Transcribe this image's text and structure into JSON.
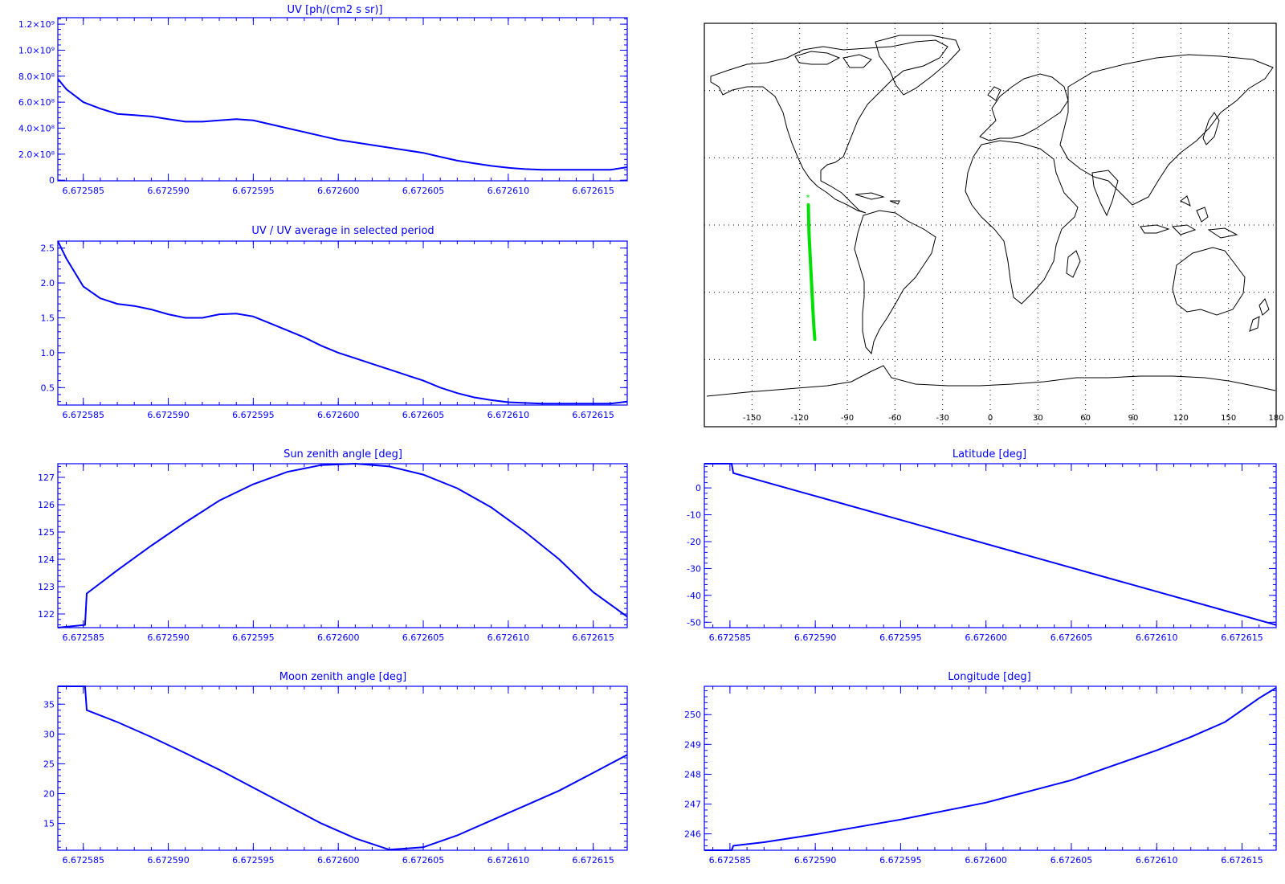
{
  "colors": {
    "axis": "#0000ff",
    "series": "#0000ff",
    "track": "#00e000",
    "coast": "#000000"
  },
  "chart_data": [
    {
      "id": "uv",
      "type": "line",
      "title": "UV [ph/(cm2 s sr)]",
      "xlim": [
        6.6725835,
        6.672617
      ],
      "x_ticks": [
        6.672585,
        6.67259,
        6.672595,
        6.6726,
        6.672605,
        6.67261,
        6.672615
      ],
      "x_tick_labels": [
        "6.672585",
        "6.672590",
        "6.672595",
        "6.672600",
        "6.672605",
        "6.672610",
        "6.672615"
      ],
      "ylim": [
        -5000000,
        1250000000
      ],
      "y_ticks": [
        0,
        200000000,
        400000000,
        600000000,
        800000000,
        1000000000,
        1200000000
      ],
      "y_tick_labels": [
        "0",
        "2.0×10⁸",
        "4.0×10⁸",
        "6.0×10⁸",
        "8.0×10⁸",
        "1.0×10⁹",
        "1.2×10⁹"
      ],
      "series": [
        {
          "x": [
            6.6725835,
            6.672584,
            6.672585,
            6.672586,
            6.672587,
            6.672588,
            6.672589,
            6.67259,
            6.672591,
            6.672592,
            6.672593,
            6.672594,
            6.672595,
            6.672596,
            6.672597,
            6.672598,
            6.672599,
            6.6726,
            6.672601,
            6.672602,
            6.672603,
            6.672604,
            6.672605,
            6.672606,
            6.672607,
            6.672608,
            6.672609,
            6.67261,
            6.672611,
            6.672612,
            6.672613,
            6.672614,
            6.672615,
            6.672616,
            6.672617
          ],
          "values": [
            780000000,
            700000000,
            600000000,
            550000000,
            510000000,
            500000000,
            490000000,
            470000000,
            450000000,
            450000000,
            460000000,
            470000000,
            460000000,
            430000000,
            400000000,
            370000000,
            340000000,
            310000000,
            290000000,
            270000000,
            250000000,
            230000000,
            210000000,
            180000000,
            150000000,
            130000000,
            110000000,
            95000000,
            85000000,
            80000000,
            80000000,
            80000000,
            80000000,
            80000000,
            100000000
          ]
        }
      ]
    },
    {
      "id": "uv-ratio",
      "type": "line",
      "title": "UV / UV average in selected period",
      "xlim": [
        6.6725835,
        6.672617
      ],
      "x_ticks": [
        6.672585,
        6.67259,
        6.672595,
        6.6726,
        6.672605,
        6.67261,
        6.672615
      ],
      "x_tick_labels": [
        "6.672585",
        "6.672590",
        "6.672595",
        "6.672600",
        "6.672605",
        "6.672610",
        "6.672615"
      ],
      "ylim": [
        0.25,
        2.6
      ],
      "y_ticks": [
        0.5,
        1.0,
        1.5,
        2.0,
        2.5
      ],
      "y_tick_labels": [
        "0.5",
        "1.0",
        "1.5",
        "2.0",
        "2.5"
      ],
      "series": [
        {
          "x": [
            6.6725835,
            6.672584,
            6.672585,
            6.672586,
            6.672587,
            6.672588,
            6.672589,
            6.67259,
            6.672591,
            6.672592,
            6.672593,
            6.672594,
            6.672595,
            6.672596,
            6.672597,
            6.672598,
            6.672599,
            6.6726,
            6.672601,
            6.672602,
            6.672603,
            6.672604,
            6.672605,
            6.672606,
            6.672607,
            6.672608,
            6.672609,
            6.67261,
            6.672611,
            6.672612,
            6.672613,
            6.672614,
            6.672615,
            6.672616,
            6.672617
          ],
          "values": [
            2.6,
            2.35,
            1.95,
            1.78,
            1.7,
            1.67,
            1.62,
            1.55,
            1.5,
            1.5,
            1.55,
            1.56,
            1.52,
            1.42,
            1.32,
            1.22,
            1.1,
            1.0,
            0.92,
            0.84,
            0.76,
            0.68,
            0.6,
            0.5,
            0.42,
            0.36,
            0.32,
            0.29,
            0.28,
            0.27,
            0.27,
            0.27,
            0.27,
            0.27,
            0.3
          ]
        }
      ]
    },
    {
      "id": "sun-zenith",
      "type": "line",
      "title": "Sun zenith angle [deg]",
      "xlim": [
        6.6725835,
        6.672617
      ],
      "x_ticks": [
        6.672585,
        6.67259,
        6.672595,
        6.6726,
        6.672605,
        6.67261,
        6.672615
      ],
      "x_tick_labels": [
        "6.672585",
        "6.672590",
        "6.672595",
        "6.672600",
        "6.672605",
        "6.672610",
        "6.672615"
      ],
      "ylim": [
        121.5,
        127.5
      ],
      "y_ticks": [
        122,
        123,
        124,
        125,
        126,
        127
      ],
      "y_tick_labels": [
        "122",
        "123",
        "124",
        "125",
        "126",
        "127"
      ],
      "series": [
        {
          "x": [
            6.6725835,
            6.6725851,
            6.6725852,
            6.672587,
            6.672589,
            6.672591,
            6.672593,
            6.672595,
            6.672597,
            6.672599,
            6.672601,
            6.672603,
            6.672605,
            6.672607,
            6.672609,
            6.672611,
            6.672613,
            6.672615,
            6.672617
          ],
          "values": [
            121.5,
            121.6,
            122.75,
            123.6,
            124.5,
            125.35,
            126.15,
            126.75,
            127.2,
            127.45,
            127.5,
            127.4,
            127.1,
            126.6,
            125.9,
            125.0,
            124.0,
            122.8,
            121.9
          ]
        }
      ]
    },
    {
      "id": "moon-zenith",
      "type": "line",
      "title": "Moon zenith angle [deg]",
      "xlim": [
        6.6725835,
        6.672617
      ],
      "x_ticks": [
        6.672585,
        6.67259,
        6.672595,
        6.6726,
        6.672605,
        6.67261,
        6.672615
      ],
      "x_tick_labels": [
        "6.672585",
        "6.672590",
        "6.672595",
        "6.672600",
        "6.672605",
        "6.672610",
        "6.672615"
      ],
      "ylim": [
        10.5,
        38
      ],
      "y_ticks": [
        15,
        20,
        25,
        30,
        35
      ],
      "y_tick_labels": [
        "15",
        "20",
        "25",
        "30",
        "35"
      ],
      "series": [
        {
          "x": [
            6.6725835,
            6.6725851,
            6.6725852,
            6.672587,
            6.672589,
            6.672591,
            6.672593,
            6.672595,
            6.672597,
            6.672599,
            6.672601,
            6.672603,
            6.672605,
            6.672607,
            6.672609,
            6.672611,
            6.672613,
            6.672615,
            6.672617
          ],
          "values": [
            38,
            38,
            34,
            32,
            29.5,
            26.8,
            24,
            21,
            18,
            15,
            12.5,
            10.6,
            11,
            13,
            15.5,
            18,
            20.5,
            23.5,
            26.5
          ]
        }
      ]
    },
    {
      "id": "latitude",
      "type": "line",
      "title": "Latitude [deg]",
      "xlim": [
        6.6725835,
        6.672617
      ],
      "x_ticks": [
        6.672585,
        6.67259,
        6.672595,
        6.6726,
        6.672605,
        6.67261,
        6.672615
      ],
      "x_tick_labels": [
        "6.672585",
        "6.672590",
        "6.672595",
        "6.672600",
        "6.672605",
        "6.672610",
        "6.672615"
      ],
      "ylim": [
        -52,
        9
      ],
      "y_ticks": [
        -50,
        -40,
        -30,
        -20,
        -10,
        0
      ],
      "y_tick_labels": [
        "-50",
        "-40",
        "-30",
        "-20",
        "-10",
        "0"
      ],
      "series": [
        {
          "x": [
            6.6725835,
            6.6725851,
            6.6725852,
            6.672617
          ],
          "values": [
            9,
            9,
            5.5,
            -51
          ]
        }
      ]
    },
    {
      "id": "longitude",
      "type": "line",
      "title": "Longitude [deg]",
      "xlim": [
        6.6725835,
        6.672617
      ],
      "x_ticks": [
        6.672585,
        6.67259,
        6.672595,
        6.6726,
        6.672605,
        6.67261,
        6.672615
      ],
      "x_tick_labels": [
        "6.672585",
        "6.672590",
        "6.672595",
        "6.672600",
        "6.672605",
        "6.672610",
        "6.672615"
      ],
      "ylim": [
        245.45,
        250.95
      ],
      "y_ticks": [
        246,
        247,
        248,
        249,
        250
      ],
      "y_tick_labels": [
        "246",
        "247",
        "248",
        "249",
        "250"
      ],
      "series": [
        {
          "x": [
            6.6725835,
            6.6725851,
            6.6725852,
            6.672587,
            6.67259,
            6.672595,
            6.6726,
            6.672605,
            6.67261,
            6.672612,
            6.672614,
            6.672616,
            6.672617
          ],
          "values": [
            245.45,
            245.45,
            245.6,
            245.72,
            245.98,
            246.48,
            247.05,
            247.8,
            248.8,
            249.25,
            249.75,
            250.55,
            250.9
          ]
        }
      ]
    }
  ],
  "map": {
    "x_tick_labels": [
      "-150",
      "-120",
      "-90",
      "-60",
      "-30",
      "0",
      "30",
      "60",
      "90",
      "120",
      "150",
      "180"
    ],
    "lon_ticks": [
      -150,
      -120,
      -90,
      -60,
      -30,
      0,
      30,
      60,
      90,
      120,
      150,
      180
    ],
    "lat_lines": [
      -60,
      -30,
      0,
      30,
      60
    ],
    "xlim": [
      -180,
      180
    ],
    "ylim": [
      -90,
      90
    ],
    "track": {
      "lon": [
        -114.5,
        -114.3,
        -114,
        -113.5,
        -113,
        -112.5,
        -112,
        -111.5,
        -111,
        -110.5
      ],
      "lat": [
        9,
        2,
        -5,
        -12,
        -19,
        -26,
        -33,
        -40,
        -46,
        -51
      ]
    }
  }
}
